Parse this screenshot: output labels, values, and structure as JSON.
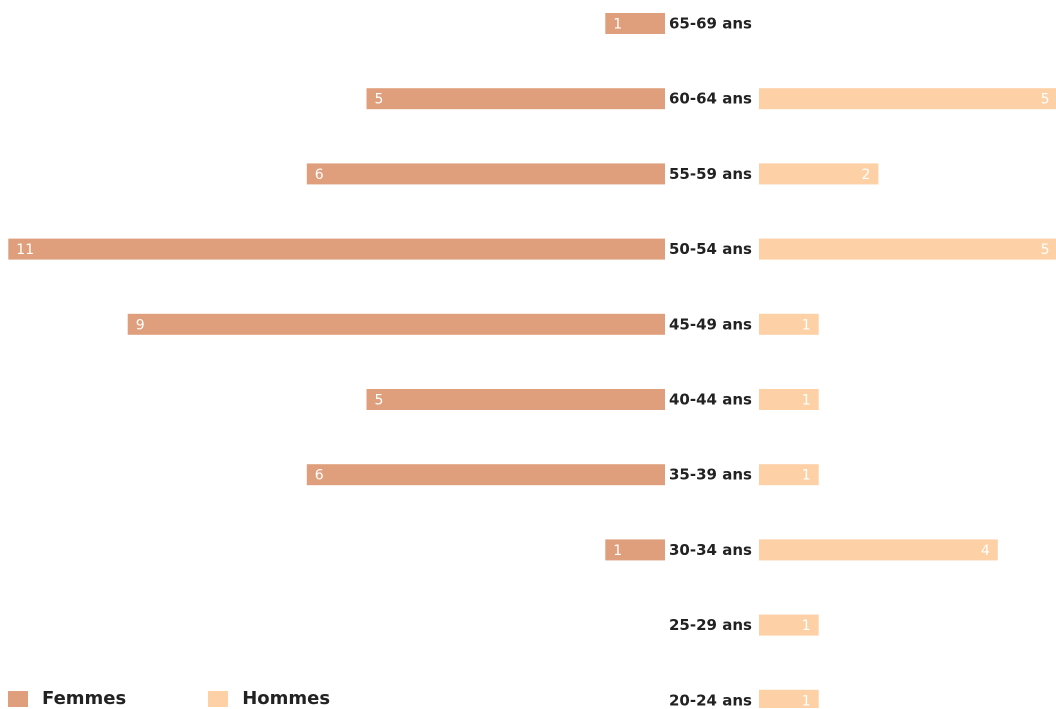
{
  "chart_data": {
    "type": "bar",
    "orientation": "horizontal",
    "layout": "population-pyramid",
    "categories": [
      "65-69 ans",
      "60-64 ans",
      "55-59 ans",
      "50-54 ans",
      "45-49 ans",
      "40-44 ans",
      "35-39 ans",
      "30-34 ans",
      "25-29 ans",
      "20-24 ans"
    ],
    "series": [
      {
        "name": "Femmes",
        "color": "#df9f7d",
        "values": [
          1,
          5,
          6,
          11,
          9,
          5,
          6,
          1,
          0,
          0
        ]
      },
      {
        "name": "Hommes",
        "color": "#fdd0a6",
        "values": [
          0,
          5,
          2,
          5,
          1,
          1,
          1,
          4,
          1,
          1
        ]
      }
    ],
    "grid": false,
    "legend_position": "bottom-left"
  }
}
